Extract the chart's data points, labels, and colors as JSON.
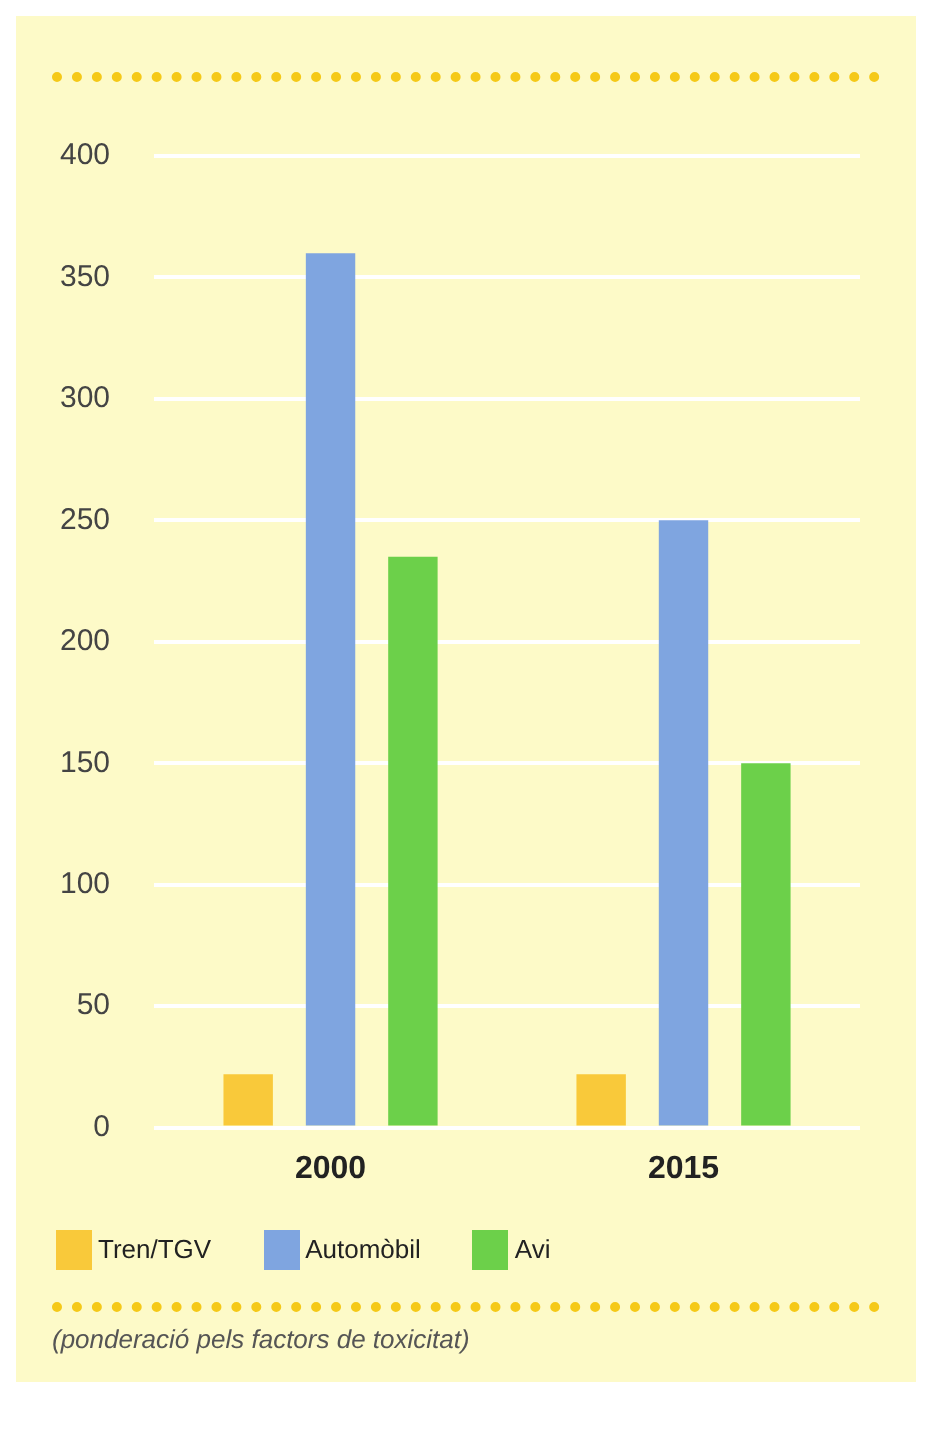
{
  "chart_data": {
    "type": "bar",
    "categories": [
      "2000",
      "2015"
    ],
    "series": [
      {
        "name": "Tren/TGV",
        "color": "#f9c93a",
        "values": [
          22,
          22
        ]
      },
      {
        "name": "Automòbil",
        "color": "#7fa5e0",
        "values": [
          360,
          250
        ]
      },
      {
        "name": "Avi",
        "color": "#6cd04a",
        "values": [
          235,
          150
        ]
      }
    ],
    "ylim": [
      0,
      400
    ],
    "yticks": [
      0,
      50,
      100,
      150,
      200,
      250,
      300,
      350,
      400
    ],
    "grid": "y",
    "legend": "bottom",
    "annotations": [
      "(ponderació pels factors de toxicitat)"
    ]
  }
}
